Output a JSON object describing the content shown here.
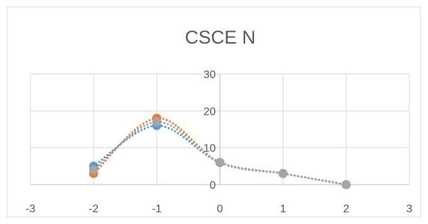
{
  "chart_data": {
    "type": "scatter",
    "title": "CSCE N",
    "xlabel": "",
    "ylabel": "",
    "xlim": [
      -3,
      3
    ],
    "ylim": [
      0,
      30
    ],
    "x_ticks": [
      -3,
      -2,
      -1,
      0,
      1,
      2,
      3
    ],
    "y_ticks": [
      0,
      10,
      20,
      30
    ],
    "grid": true,
    "legend": "none",
    "line_style": "dotted smooth",
    "series": [
      {
        "color": "#5B9BD5",
        "x": [
          -2,
          -1,
          0,
          1,
          2
        ],
        "y": [
          5,
          16,
          6,
          3,
          0
        ]
      },
      {
        "color": "#ED7D31",
        "x": [
          -2,
          -1,
          0,
          1,
          2
        ],
        "y": [
          3,
          18,
          6,
          3,
          0
        ]
      },
      {
        "color": "#A5A5A5",
        "x": [
          -2,
          -1,
          0,
          1,
          2
        ],
        "y": [
          4,
          17,
          6,
          3,
          0
        ]
      }
    ]
  }
}
